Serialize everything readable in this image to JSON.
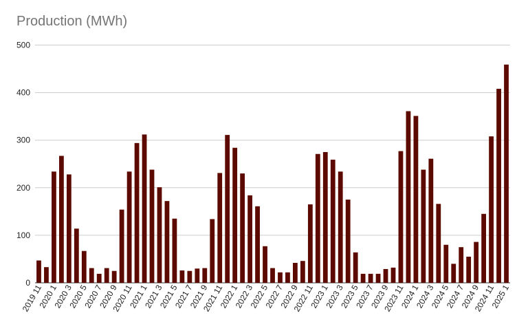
{
  "chart_data": {
    "type": "bar",
    "title": "Production (MWh)",
    "xlabel": "",
    "ylabel": "",
    "ylim": [
      0,
      500
    ],
    "yticks": [
      0,
      100,
      200,
      300,
      400,
      500
    ],
    "grid": true,
    "legend": "none",
    "bar_color": "#5c0a00",
    "categories": [
      "2019 11",
      "2019 12",
      "2020 1",
      "2020 2",
      "2020 3",
      "2020 4",
      "2020 5",
      "2020 6",
      "2020 7",
      "2020 8",
      "2020 9",
      "2020 10",
      "2020 11",
      "2020 12",
      "2021 1",
      "2021 2",
      "2021 3",
      "2021 4",
      "2021 5",
      "2021 6",
      "2021 7",
      "2021 8",
      "2021 9",
      "2021 10",
      "2021 11",
      "2021 12",
      "2022 1",
      "2022 2",
      "2022 3",
      "2022 4",
      "2022 5",
      "2022 6",
      "2022 7",
      "2022 8",
      "2022 9",
      "2022 10",
      "2022 11",
      "2022 12",
      "2023 1",
      "2023 2",
      "2023 3",
      "2023 4",
      "2023 5",
      "2023 6",
      "2023 7",
      "2023 8",
      "2023 9",
      "2023 10",
      "2023 11",
      "2023 12",
      "2024 1",
      "2024 2",
      "2024 3",
      "2024 4",
      "2024 5",
      "2024 6",
      "2024 7",
      "2024 8",
      "2024 9",
      "2024 10",
      "2024 11",
      "2024 12",
      "2025 1"
    ],
    "tick_labels": [
      "2019 11",
      "2020 1",
      "2020 3",
      "2020 5",
      "2020 7",
      "2020 9",
      "2020 11",
      "2021 1",
      "2021 3",
      "2021 5",
      "2021 7",
      "2021 9",
      "2021 11",
      "2022 1",
      "2022 3",
      "2022 5",
      "2022 7",
      "2022 9",
      "2022 11",
      "2023 1",
      "2023 3",
      "2023 5",
      "2023 7",
      "2023 9",
      "2023 11",
      "2024 1",
      "2024 3",
      "2024 5",
      "2024 7",
      "2024 9",
      "2024 11",
      "2025 1"
    ],
    "values": [
      47,
      33,
      234,
      267,
      228,
      114,
      67,
      31,
      19,
      31,
      25,
      154,
      234,
      294,
      312,
      238,
      201,
      172,
      135,
      26,
      25,
      30,
      31,
      134,
      231,
      311,
      284,
      230,
      184,
      161,
      77,
      31,
      22,
      22,
      42,
      46,
      165,
      271,
      275,
      259,
      234,
      175,
      64,
      19,
      19,
      19,
      29,
      32,
      277,
      361,
      351,
      238,
      261,
      166,
      80,
      40,
      75,
      55,
      86,
      145,
      308,
      408,
      459
    ]
  }
}
